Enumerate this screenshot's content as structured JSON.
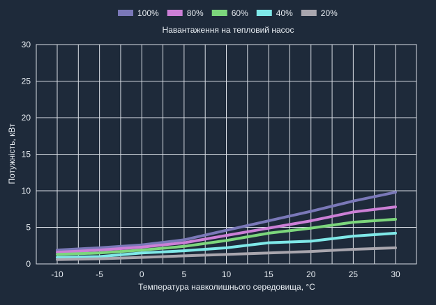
{
  "chart_data": {
    "type": "line",
    "title": "Навантаження на тепловий насос",
    "xlabel": "Температура навколишнього середовища, °C",
    "ylabel": "Потужність, кВт",
    "x": [
      -10,
      -5,
      0,
      5,
      10,
      15,
      20,
      25,
      30
    ],
    "xlim": [
      -10,
      30
    ],
    "ylim": [
      0,
      30
    ],
    "x_ticks": [
      -10,
      -5,
      0,
      5,
      10,
      15,
      20,
      25,
      30
    ],
    "y_ticks": [
      0,
      5,
      10,
      15,
      20,
      25,
      30
    ],
    "grid": true,
    "legend_position": "top",
    "series": [
      {
        "name": "100%",
        "color": "#7a78b8",
        "values": [
          1.9,
          2.2,
          2.6,
          3.3,
          4.6,
          5.9,
          7.2,
          8.6,
          9.8
        ]
      },
      {
        "name": "80%",
        "color": "#cc7fd6",
        "values": [
          1.6,
          1.9,
          2.3,
          2.9,
          3.9,
          4.9,
          5.9,
          7.1,
          7.8
        ]
      },
      {
        "name": "60%",
        "color": "#7cd67c",
        "values": [
          1.3,
          1.5,
          1.9,
          2.4,
          3.2,
          4.2,
          4.9,
          5.7,
          6.1
        ]
      },
      {
        "name": "40%",
        "color": "#7fe8e8",
        "values": [
          0.9,
          1.0,
          1.5,
          1.8,
          2.2,
          2.9,
          3.1,
          3.8,
          4.2
        ]
      },
      {
        "name": "20%",
        "color": "#a9a6ae",
        "values": [
          0.6,
          0.7,
          0.9,
          1.1,
          1.3,
          1.5,
          1.7,
          2.0,
          2.2
        ]
      }
    ]
  }
}
